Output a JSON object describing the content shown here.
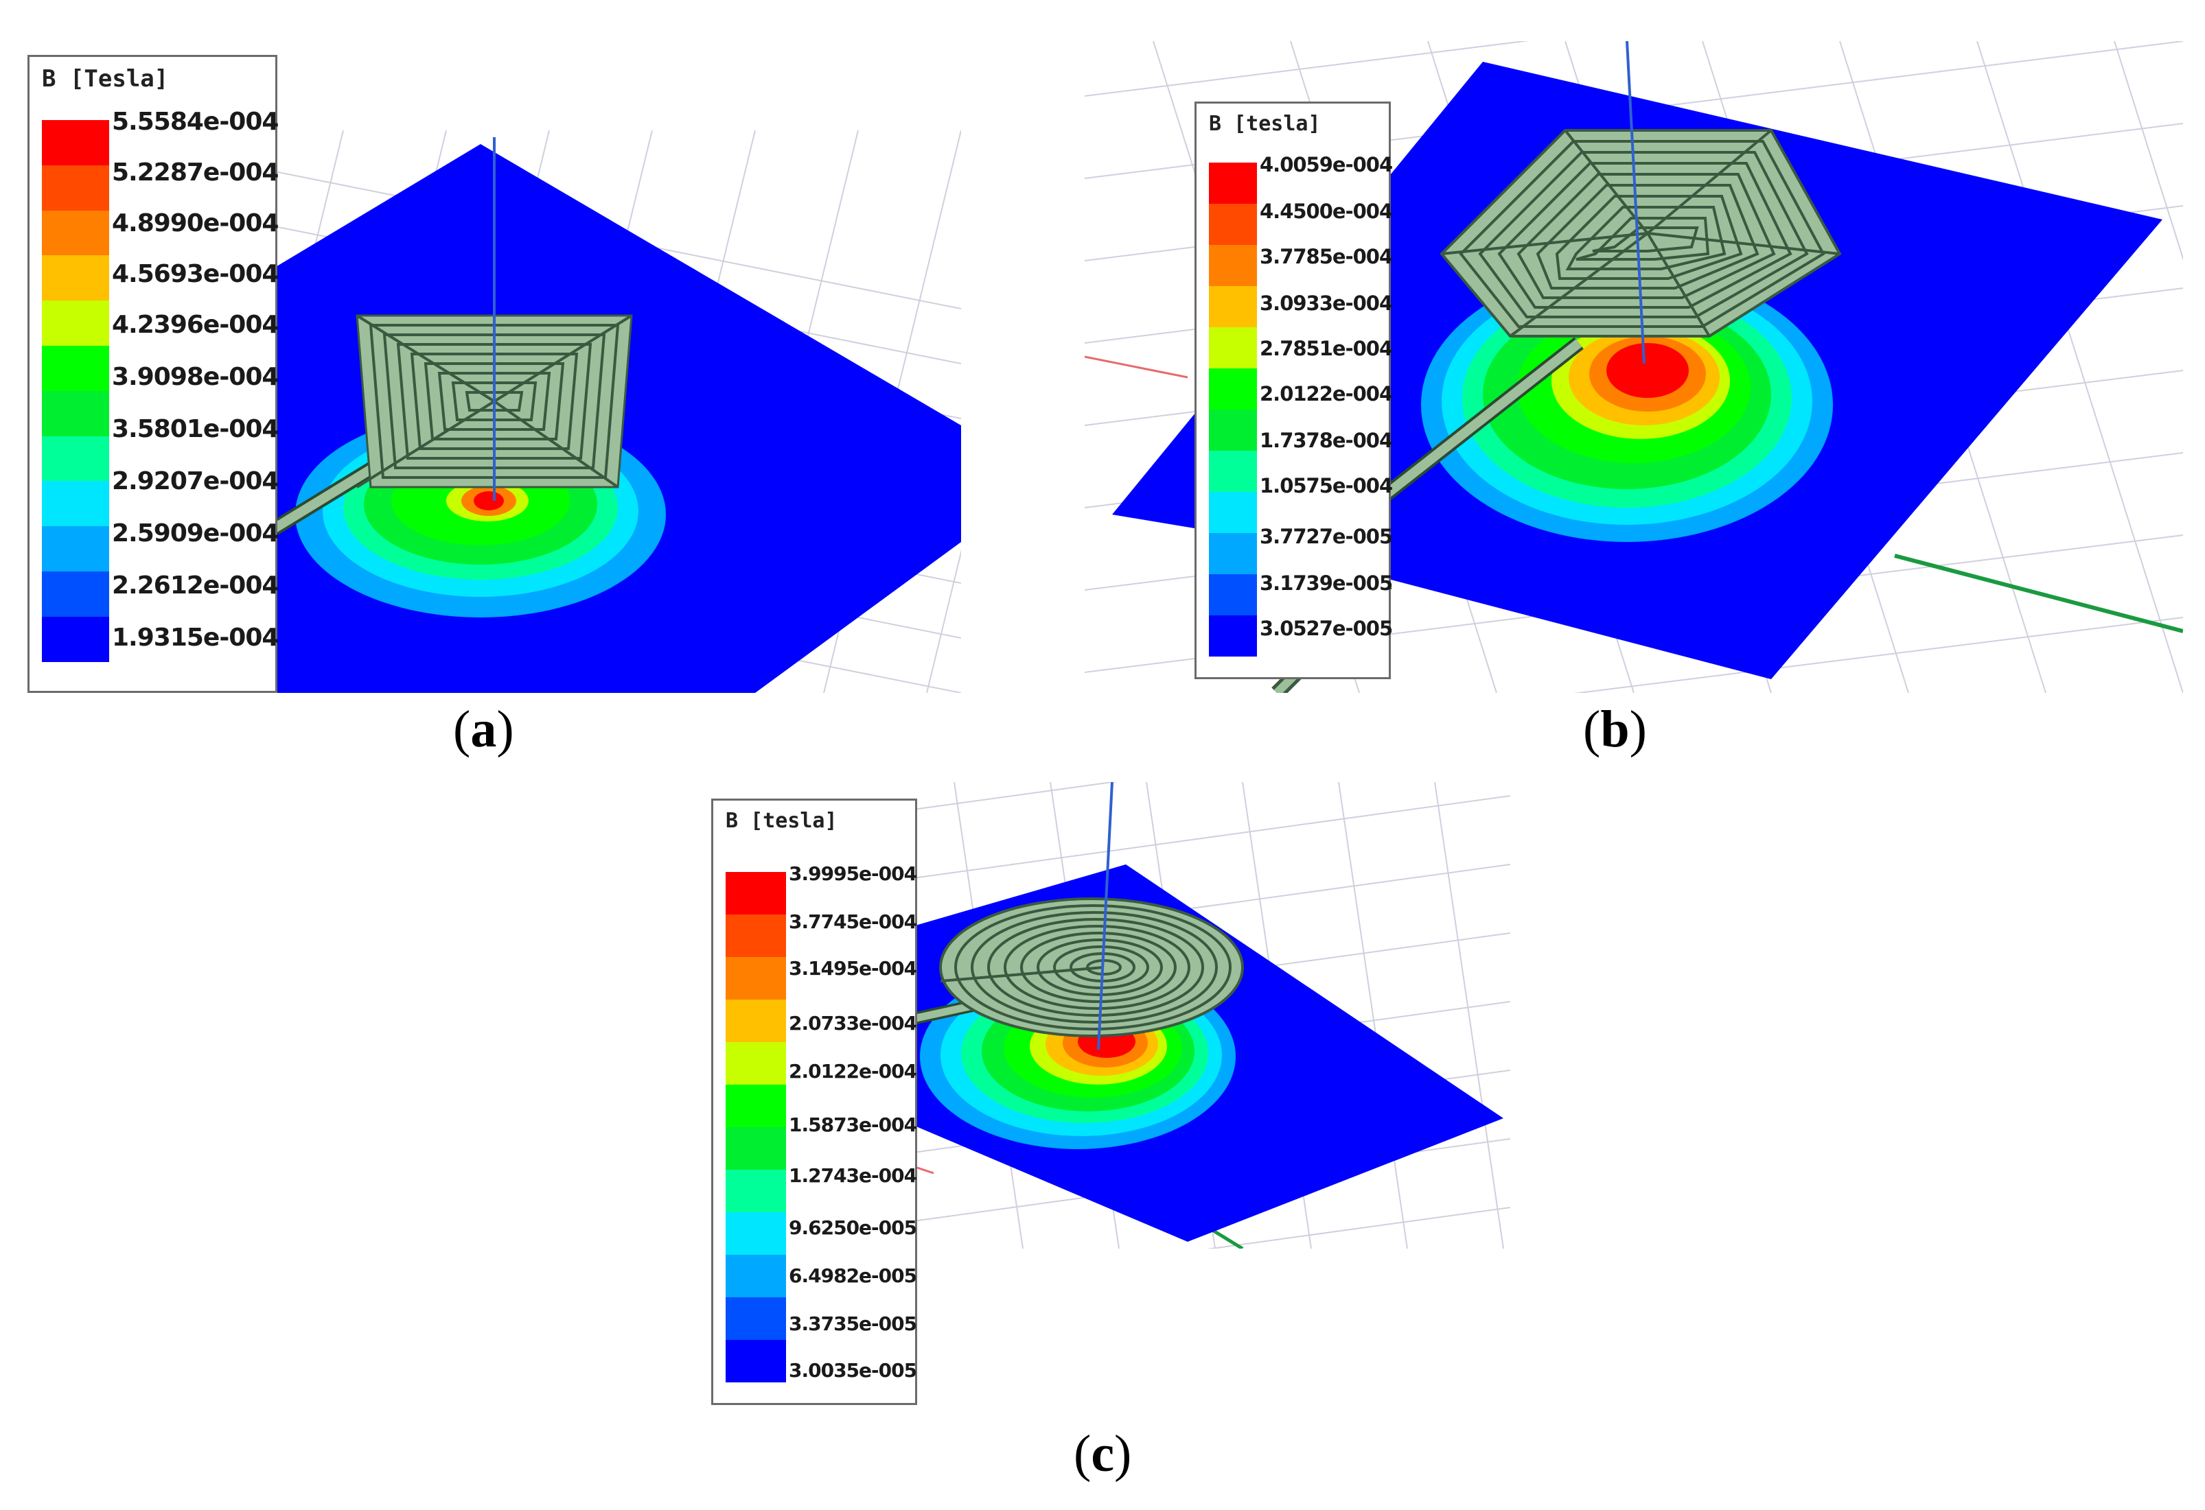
{
  "panels": [
    {
      "id": "a",
      "caption_letter": "a",
      "coil_shape": "square",
      "legend_title": "B [Tesla]",
      "legend_values": [
        "5.5584e-004",
        "5.2287e-004",
        "4.8990e-004",
        "4.5693e-004",
        "4.2396e-004",
        "3.9098e-004",
        "3.5801e-004",
        "2.9207e-004",
        "2.5909e-004",
        "2.2612e-004",
        "1.9315e-004"
      ]
    },
    {
      "id": "b",
      "caption_letter": "b",
      "coil_shape": "hexagon",
      "legend_title": "B [tesla]",
      "legend_values": [
        "4.0059e-004",
        "4.4500e-004",
        "3.7785e-004",
        "3.0933e-004",
        "2.7851e-004",
        "2.0122e-004",
        "1.7378e-004",
        "1.0575e-004",
        "3.7727e-005",
        "3.1739e-005",
        "3.0527e-005"
      ]
    },
    {
      "id": "c",
      "caption_letter": "c",
      "coil_shape": "circle",
      "legend_title": "B [tesla]",
      "legend_values": [
        "3.9995e-004",
        "3.7745e-004",
        "3.1495e-004",
        "2.0733e-004",
        "2.0122e-004",
        "1.5873e-004",
        "1.2743e-004",
        "9.6250e-005",
        "6.4982e-005",
        "3.3735e-005",
        "3.0035e-005"
      ]
    }
  ],
  "colors": {
    "scale": [
      "#ff0000",
      "#ff4a00",
      "#ff8000",
      "#ffc000",
      "#c8ff00",
      "#00ff00",
      "#00ee30",
      "#00ff99",
      "#00e6ff",
      "#00a8ff",
      "#0050ff",
      "#0000ff"
    ],
    "plane": "#0000ff",
    "coil": "#9dbf9b",
    "grid": "#c8c8d8"
  }
}
